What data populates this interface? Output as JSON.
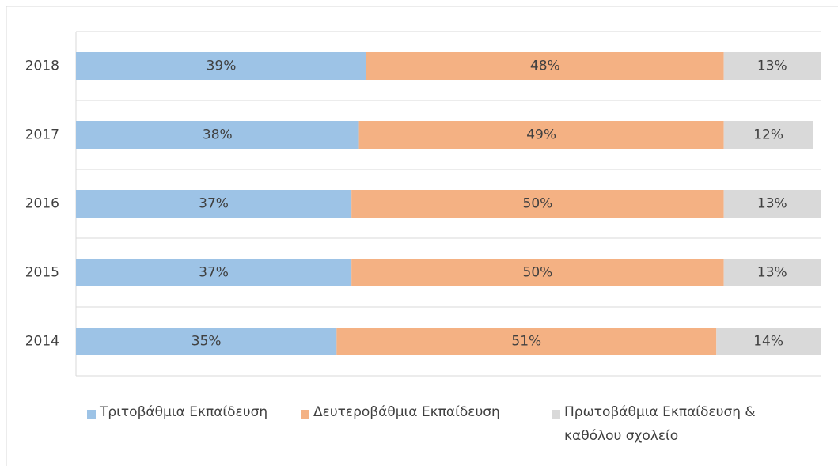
{
  "chart_data": {
    "type": "stacked-bar-horizontal",
    "categories": [
      "2018",
      "2017",
      "2016",
      "2015",
      "2014"
    ],
    "xlim": [
      0,
      100
    ],
    "series": [
      {
        "name": "Τριτοβάθμια Εκπαίδευση",
        "color": "#9dc3e6",
        "values": [
          39,
          38,
          37,
          37,
          35
        ],
        "value_labels": [
          "39%",
          "38%",
          "37%",
          "37%",
          "35%"
        ]
      },
      {
        "name": "Δευτεροβάθμια Εκπαίδευση",
        "color": "#f4b183",
        "values": [
          48,
          49,
          50,
          50,
          51
        ],
        "value_labels": [
          "48%",
          "49%",
          "50%",
          "50%",
          "51%"
        ]
      },
      {
        "name": "Πρωτοβάθμια Εκπαίδευση & καθόλου σχολείο",
        "color": "#d9d9d9",
        "values": [
          13,
          12,
          13,
          13,
          14
        ],
        "value_labels": [
          "13%",
          "12%",
          "13%",
          "13%",
          "14%"
        ]
      }
    ]
  }
}
